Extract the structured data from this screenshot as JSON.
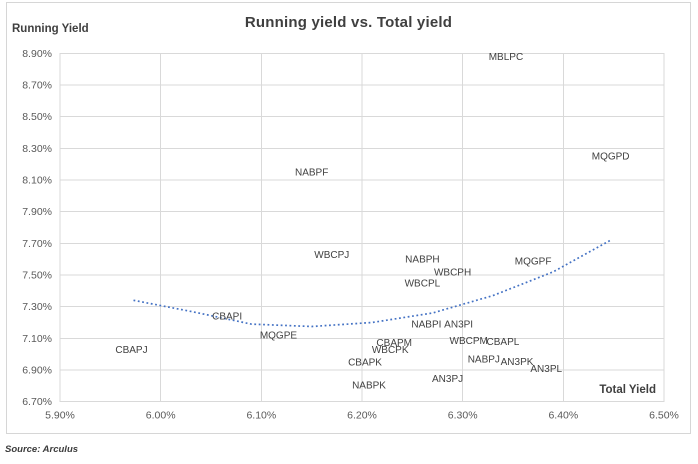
{
  "chart": {
    "title": "Running yield vs. Total yield",
    "y_axis_title": "Running Yield",
    "x_axis_title": "Total Yield",
    "source": "Source: Arculus"
  },
  "chart_data": {
    "type": "scatter",
    "title": "Running yield vs. Total yield",
    "xlabel": "Total Yield",
    "ylabel": "Running Yield",
    "xlim": [
      5.9,
      6.5
    ],
    "ylim": [
      6.7,
      8.9
    ],
    "grid": true,
    "legend": "none",
    "marker_style": "text-label-only",
    "x_ticks": [
      {
        "value": 5.9,
        "label": "5.90%"
      },
      {
        "value": 6.0,
        "label": "6.00%"
      },
      {
        "value": 6.1,
        "label": "6.10%"
      },
      {
        "value": 6.2,
        "label": "6.20%"
      },
      {
        "value": 6.3,
        "label": "6.30%"
      },
      {
        "value": 6.4,
        "label": "6.40%"
      },
      {
        "value": 6.5,
        "label": "6.50%"
      }
    ],
    "y_ticks": [
      {
        "value": 8.9,
        "label": "8.90%"
      },
      {
        "value": 8.7,
        "label": "8.70%"
      },
      {
        "value": 8.5,
        "label": "8.50%"
      },
      {
        "value": 8.3,
        "label": "8.30%"
      },
      {
        "value": 8.1,
        "label": "8.10%"
      },
      {
        "value": 7.9,
        "label": "7.90%"
      },
      {
        "value": 7.7,
        "label": "7.70%"
      },
      {
        "value": 7.5,
        "label": "7.50%"
      },
      {
        "value": 7.3,
        "label": "7.30%"
      },
      {
        "value": 7.1,
        "label": "7.10%"
      },
      {
        "value": 6.9,
        "label": "6.90%"
      },
      {
        "value": 6.7,
        "label": "6.70%"
      }
    ],
    "points": [
      {
        "label": "MBLPC",
        "x": 6.343,
        "y": 8.88
      },
      {
        "label": "MQGPD",
        "x": 6.447,
        "y": 8.25
      },
      {
        "label": "NABPF",
        "x": 6.15,
        "y": 8.15
      },
      {
        "label": "WBCPJ",
        "x": 6.17,
        "y": 7.63
      },
      {
        "label": "NABPH",
        "x": 6.26,
        "y": 7.6
      },
      {
        "label": "WBCPH",
        "x": 6.29,
        "y": 7.52
      },
      {
        "label": "WBCPL",
        "x": 6.26,
        "y": 7.45
      },
      {
        "label": "MQGPF",
        "x": 6.37,
        "y": 7.59
      },
      {
        "label": "CBAPI",
        "x": 6.066,
        "y": 7.24
      },
      {
        "label": "MQGPE",
        "x": 6.117,
        "y": 7.12
      },
      {
        "label": "NABPI",
        "x": 6.264,
        "y": 7.19
      },
      {
        "label": "AN3PI",
        "x": 6.296,
        "y": 7.19
      },
      {
        "label": "CBAPJ",
        "x": 5.971,
        "y": 7.03
      },
      {
        "label": "CBAPM",
        "x": 6.232,
        "y": 7.075
      },
      {
        "label": "WBCPM",
        "x": 6.306,
        "y": 7.085
      },
      {
        "label": "CBAPL",
        "x": 6.34,
        "y": 7.08
      },
      {
        "label": "WBCPK",
        "x": 6.228,
        "y": 7.03
      },
      {
        "label": "CBAPK",
        "x": 6.203,
        "y": 6.95
      },
      {
        "label": "NABPJ",
        "x": 6.321,
        "y": 6.97
      },
      {
        "label": "AN3PK",
        "x": 6.354,
        "y": 6.955
      },
      {
        "label": "AN3PL",
        "x": 6.383,
        "y": 6.91
      },
      {
        "label": "AN3PJ",
        "x": 6.285,
        "y": 6.845
      },
      {
        "label": "NABPK",
        "x": 6.207,
        "y": 6.805
      }
    ],
    "trendline": {
      "style": "dotted",
      "shape": "u-curve",
      "points": [
        [
          5.973,
          7.34
        ],
        [
          6.03,
          7.27
        ],
        [
          6.09,
          7.19
        ],
        [
          6.15,
          7.175
        ],
        [
          6.21,
          7.2
        ],
        [
          6.27,
          7.26
        ],
        [
          6.33,
          7.37
        ],
        [
          6.39,
          7.52
        ],
        [
          6.447,
          7.72
        ]
      ]
    },
    "colors": {
      "grid": "#d9d9d9",
      "tick_label": "#595959",
      "point_label": "#404040",
      "title": "#3f3f3f",
      "trend": "#4472c4",
      "background": "#ffffff"
    }
  }
}
